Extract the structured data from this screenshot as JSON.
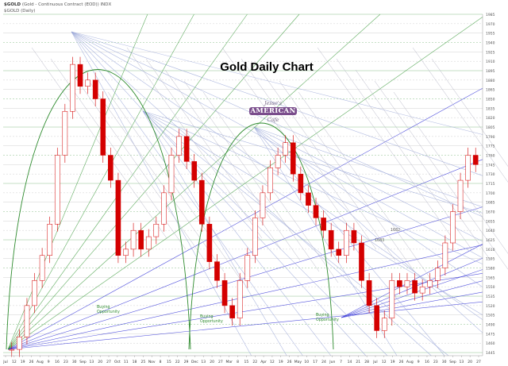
{
  "header": {
    "symbol": "$GOLD",
    "description": "(Gold - Continuous Contract (EOD)) INDX",
    "subline": "$GOLD (Daily)"
  },
  "chart_title": "Gold Daily Chart",
  "logo": {
    "top": "Jesse's",
    "middle": "AMERICAN",
    "bottom": "Cafe"
  },
  "annotations": {
    "buy1": [
      "Buying",
      "Opportunity"
    ],
    "buy2": [
      "Buying",
      "Opportunity"
    ],
    "buy3": [
      "Buying",
      "Opportunity"
    ],
    "t1": "1683",
    "t2": "1682"
  },
  "colors": {
    "up": "#d40000",
    "down": "#d40000",
    "arc": "#2e8b2e",
    "fan_blue": "#2b2bd6",
    "fan_light": "#9aa7d8",
    "fan_green": "#3b9a3b",
    "grid": "#d0d0d0",
    "annotation": "#2e8b2e"
  },
  "chart_data": {
    "type": "candlestick",
    "title": "Gold Daily Chart",
    "ylim": [
      1440,
      1985
    ],
    "y_ticks": [
      1985,
      1970,
      1955,
      1940,
      1925,
      1910,
      1895,
      1880,
      1865,
      1850,
      1835,
      1820,
      1805,
      1790,
      1775,
      1760,
      1745,
      1730,
      1715,
      1700,
      1685,
      1670,
      1655,
      1640,
      1625,
      1610,
      1595,
      1580,
      1565,
      1550,
      1535,
      1520,
      1505,
      1490,
      1475,
      1460,
      1445
    ],
    "x_tick_labels": [
      "Jul",
      "12",
      "19",
      "26",
      "Aug",
      "9",
      "16",
      "23",
      "30",
      "Sep",
      "13",
      "20",
      "27",
      "Oct",
      "11",
      "18",
      "25",
      "Nov",
      "8",
      "15",
      "22",
      "29",
      "Dec",
      "13",
      "20",
      "27",
      "Mar",
      "8",
      "15",
      "22",
      "Apr",
      "12",
      "19",
      "26",
      "May",
      "10",
      "17",
      "24",
      "Jun",
      "7",
      "14",
      "21",
      "28",
      "Jul",
      "12",
      "19",
      "26",
      "Aug",
      "9",
      "16",
      "23",
      "30",
      "Sep",
      "13",
      "20",
      "27"
    ],
    "series_close_approx": [
      1450,
      1470,
      1520,
      1560,
      1600,
      1650,
      1760,
      1830,
      1905,
      1870,
      1880,
      1850,
      1760,
      1720,
      1600,
      1610,
      1640,
      1610,
      1630,
      1650,
      1700,
      1760,
      1790,
      1750,
      1720,
      1650,
      1590,
      1560,
      1520,
      1500,
      1560,
      1600,
      1660,
      1700,
      1740,
      1760,
      1780,
      1730,
      1700,
      1680,
      1660,
      1640,
      1610,
      1600,
      1640,
      1620,
      1560,
      1520,
      1480,
      1500,
      1560,
      1550,
      1560,
      1540,
      1550,
      1560,
      1580,
      1620,
      1670,
      1720,
      1760,
      1745
    ]
  }
}
